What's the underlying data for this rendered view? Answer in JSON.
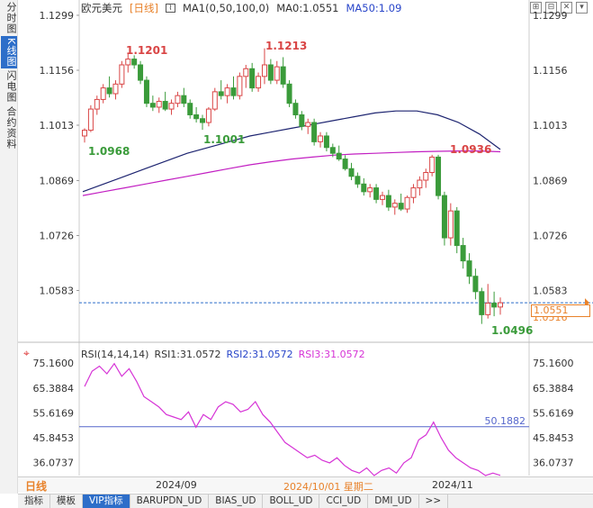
{
  "left_tabs": [
    "分时图",
    "K线图",
    "闪电图",
    "合约资料"
  ],
  "symbol": "欧元美元",
  "period": "[日线]",
  "ma_legend": {
    "ma_title": "MA1(0,50,100,0)",
    "ma0": "MA0:1.0551",
    "ma50": "MA50:1.09"
  },
  "price_axis": {
    "ticks": [
      "1.1299",
      "1.1156",
      "1.1013",
      "1.0869",
      "1.0726",
      "1.0583"
    ],
    "current_price": "1.0551",
    "low_price": "1.0516"
  },
  "annotations": {
    "high1": "1.1201",
    "high2": "1.1213",
    "low1": "1.0968",
    "low2": "1.1001",
    "high3": "1.0936",
    "low3": "1.0496"
  },
  "rsi_legend": {
    "title": "RSI(14,14,14)",
    "rsi1": "RSI1:31.0572",
    "rsi2": "RSI2:31.0572",
    "rsi3": "RSI3:31.0572"
  },
  "rsi_axis": {
    "ticks": [
      "75.1600",
      "65.3884",
      "55.6169",
      "45.8453",
      "36.0737"
    ],
    "level_label": "50.1882"
  },
  "x_axis": {
    "period_label": "日线",
    "labels": [
      "2024/09",
      "2024/10/01 星期二",
      "2024/11"
    ]
  },
  "bottom_tabs": [
    "指标",
    "模板",
    "VIP指标",
    "BARUPDN_UD",
    "BIAS_UD",
    "BOLL_UD",
    "CCI_UD",
    "DMI_UD",
    ">>"
  ],
  "colors": {
    "up": "#d94545",
    "down": "#3a9b3a",
    "ma50": "#1d2470",
    "ma100": "#c21fc2",
    "rsi": "#d633d6",
    "accent": "#2d6ec9"
  },
  "chart_data": {
    "type": "candlestick",
    "candles_approx": [
      {
        "o": 1.0985,
        "h": 1.1005,
        "l": 1.0968,
        "c": 1.1
      },
      {
        "o": 1.1,
        "h": 1.1065,
        "l": 1.0995,
        "c": 1.1055
      },
      {
        "o": 1.1055,
        "h": 1.109,
        "l": 1.104,
        "c": 1.108
      },
      {
        "o": 1.108,
        "h": 1.112,
        "l": 1.107,
        "c": 1.111
      },
      {
        "o": 1.111,
        "h": 1.114,
        "l": 1.1085,
        "c": 1.1095
      },
      {
        "o": 1.1095,
        "h": 1.113,
        "l": 1.108,
        "c": 1.112
      },
      {
        "o": 1.112,
        "h": 1.118,
        "l": 1.111,
        "c": 1.117
      },
      {
        "o": 1.117,
        "h": 1.1201,
        "l": 1.115,
        "c": 1.1185
      },
      {
        "o": 1.1185,
        "h": 1.1195,
        "l": 1.116,
        "c": 1.117
      },
      {
        "o": 1.117,
        "h": 1.118,
        "l": 1.112,
        "c": 1.113
      },
      {
        "o": 1.113,
        "h": 1.114,
        "l": 1.106,
        "c": 1.107
      },
      {
        "o": 1.107,
        "h": 1.109,
        "l": 1.105,
        "c": 1.106
      },
      {
        "o": 1.106,
        "h": 1.1085,
        "l": 1.1045,
        "c": 1.1075
      },
      {
        "o": 1.1075,
        "h": 1.11,
        "l": 1.105,
        "c": 1.1055
      },
      {
        "o": 1.1055,
        "h": 1.108,
        "l": 1.104,
        "c": 1.107
      },
      {
        "o": 1.107,
        "h": 1.11,
        "l": 1.106,
        "c": 1.109
      },
      {
        "o": 1.109,
        "h": 1.111,
        "l": 1.106,
        "c": 1.107
      },
      {
        "o": 1.107,
        "h": 1.108,
        "l": 1.103,
        "c": 1.104
      },
      {
        "o": 1.104,
        "h": 1.106,
        "l": 1.102,
        "c": 1.103
      },
      {
        "o": 1.103,
        "h": 1.104,
        "l": 1.1001,
        "c": 1.102
      },
      {
        "o": 1.102,
        "h": 1.106,
        "l": 1.101,
        "c": 1.1055
      },
      {
        "o": 1.1055,
        "h": 1.111,
        "l": 1.105,
        "c": 1.11
      },
      {
        "o": 1.11,
        "h": 1.113,
        "l": 1.108,
        "c": 1.109
      },
      {
        "o": 1.109,
        "h": 1.112,
        "l": 1.107,
        "c": 1.111
      },
      {
        "o": 1.111,
        "h": 1.114,
        "l": 1.108,
        "c": 1.109
      },
      {
        "o": 1.109,
        "h": 1.115,
        "l": 1.108,
        "c": 1.114
      },
      {
        "o": 1.114,
        "h": 1.117,
        "l": 1.111,
        "c": 1.116
      },
      {
        "o": 1.116,
        "h": 1.1175,
        "l": 1.11,
        "c": 1.111
      },
      {
        "o": 1.111,
        "h": 1.115,
        "l": 1.11,
        "c": 1.114
      },
      {
        "o": 1.114,
        "h": 1.1213,
        "l": 1.112,
        "c": 1.117
      },
      {
        "o": 1.117,
        "h": 1.1185,
        "l": 1.112,
        "c": 1.113
      },
      {
        "o": 1.113,
        "h": 1.118,
        "l": 1.112,
        "c": 1.1165
      },
      {
        "o": 1.1165,
        "h": 1.119,
        "l": 1.111,
        "c": 1.112
      },
      {
        "o": 1.112,
        "h": 1.113,
        "l": 1.106,
        "c": 1.107
      },
      {
        "o": 1.107,
        "h": 1.108,
        "l": 1.103,
        "c": 1.104
      },
      {
        "o": 1.104,
        "h": 1.105,
        "l": 1.1,
        "c": 1.101
      },
      {
        "o": 1.101,
        "h": 1.103,
        "l": 1.099,
        "c": 1.102
      },
      {
        "o": 1.102,
        "h": 1.103,
        "l": 1.096,
        "c": 1.097
      },
      {
        "o": 1.097,
        "h": 1.0995,
        "l": 1.0955,
        "c": 1.0985
      },
      {
        "o": 1.0985,
        "h": 1.0995,
        "l": 1.0945,
        "c": 1.0955
      },
      {
        "o": 1.0955,
        "h": 1.0965,
        "l": 1.093,
        "c": 1.094
      },
      {
        "o": 1.094,
        "h": 1.096,
        "l": 1.092,
        "c": 1.0925
      },
      {
        "o": 1.0925,
        "h": 1.0935,
        "l": 1.0895,
        "c": 1.09
      },
      {
        "o": 1.09,
        "h": 1.0915,
        "l": 1.087,
        "c": 1.088
      },
      {
        "o": 1.088,
        "h": 1.089,
        "l": 1.085,
        "c": 1.086
      },
      {
        "o": 1.086,
        "h": 1.0875,
        "l": 1.083,
        "c": 1.084
      },
      {
        "o": 1.084,
        "h": 1.086,
        "l": 1.0825,
        "c": 1.085
      },
      {
        "o": 1.085,
        "h": 1.086,
        "l": 1.081,
        "c": 1.082
      },
      {
        "o": 1.082,
        "h": 1.084,
        "l": 1.0805,
        "c": 1.083
      },
      {
        "o": 1.083,
        "h": 1.0845,
        "l": 1.079,
        "c": 1.08
      },
      {
        "o": 1.08,
        "h": 1.082,
        "l": 1.078,
        "c": 1.081
      },
      {
        "o": 1.081,
        "h": 1.0835,
        "l": 1.079,
        "c": 1.0795
      },
      {
        "o": 1.0795,
        "h": 1.083,
        "l": 1.0785,
        "c": 1.0825
      },
      {
        "o": 1.0825,
        "h": 1.086,
        "l": 1.081,
        "c": 1.085
      },
      {
        "o": 1.085,
        "h": 1.088,
        "l": 1.083,
        "c": 1.087
      },
      {
        "o": 1.087,
        "h": 1.09,
        "l": 1.085,
        "c": 1.089
      },
      {
        "o": 1.089,
        "h": 1.0936,
        "l": 1.088,
        "c": 1.093
      },
      {
        "o": 1.093,
        "h": 1.0936,
        "l": 1.082,
        "c": 1.083
      },
      {
        "o": 1.083,
        "h": 1.084,
        "l": 1.07,
        "c": 1.072
      },
      {
        "o": 1.072,
        "h": 1.081,
        "l": 1.07,
        "c": 1.079
      },
      {
        "o": 1.079,
        "h": 1.08,
        "l": 1.068,
        "c": 1.07
      },
      {
        "o": 1.07,
        "h": 1.072,
        "l": 1.064,
        "c": 1.066
      },
      {
        "o": 1.066,
        "h": 1.068,
        "l": 1.06,
        "c": 1.062
      },
      {
        "o": 1.062,
        "h": 1.064,
        "l": 1.056,
        "c": 1.058
      },
      {
        "o": 1.058,
        "h": 1.059,
        "l": 1.0496,
        "c": 1.052
      },
      {
        "o": 1.052,
        "h": 1.06,
        "l": 1.051,
        "c": 1.055
      },
      {
        "o": 1.055,
        "h": 1.058,
        "l": 1.0516,
        "c": 1.054
      },
      {
        "o": 1.054,
        "h": 1.0565,
        "l": 1.052,
        "c": 1.0551
      }
    ],
    "ma50": [
      1.084,
      1.086,
      1.088,
      1.09,
      1.092,
      1.094,
      1.0955,
      1.097,
      1.0985,
      1.0995,
      1.1005,
      1.1015,
      1.1025,
      1.1035,
      1.1045,
      1.105,
      1.105,
      1.104,
      1.102,
      1.099,
      1.095
    ],
    "ma100": [
      1.083,
      1.084,
      1.085,
      1.086,
      1.087,
      1.088,
      1.089,
      1.09,
      1.091,
      1.0918,
      1.0925,
      1.093,
      1.0935,
      1.0938,
      1.094,
      1.0942,
      1.0944,
      1.0945,
      1.0946,
      1.0946,
      1.0944
    ],
    "rsi": [
      66,
      72,
      74,
      71,
      75,
      70,
      73,
      68,
      62,
      60,
      58,
      55,
      54,
      53,
      56,
      50,
      55,
      53,
      58,
      60,
      59,
      56,
      57,
      60,
      55,
      52,
      48,
      44,
      42,
      40,
      38,
      39,
      37,
      36,
      38,
      35,
      33,
      32,
      34,
      31,
      33,
      34,
      32,
      36,
      38,
      45,
      47,
      52,
      46,
      41,
      38,
      36,
      34,
      33,
      31,
      32,
      31.06
    ],
    "rsi_ylim": [
      31,
      77
    ],
    "price_ylim": [
      1.046,
      1.132
    ]
  }
}
